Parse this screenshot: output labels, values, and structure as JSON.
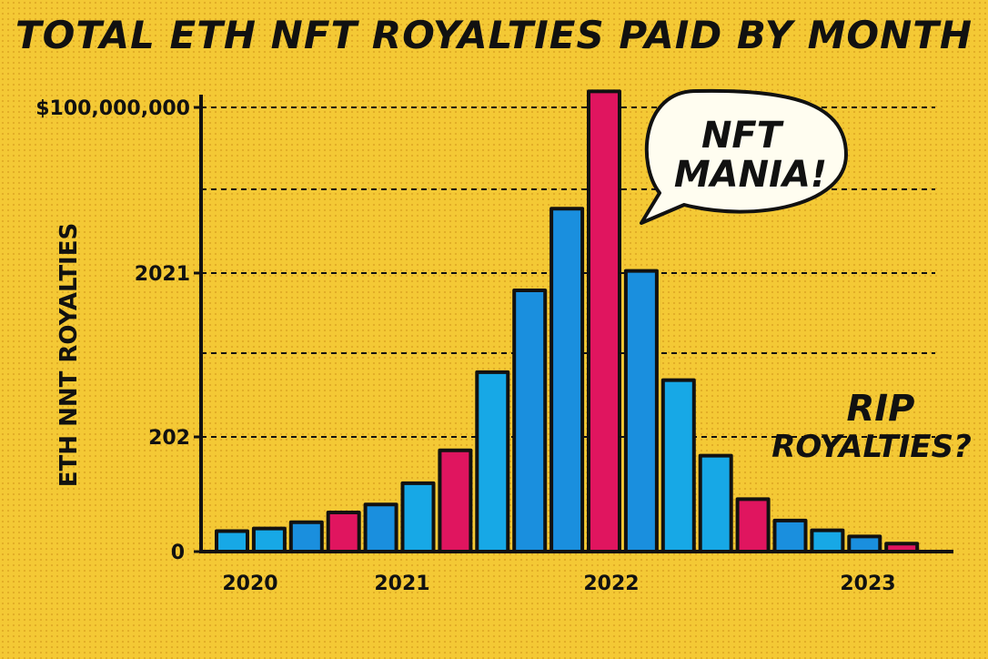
{
  "title": "TOTAL ETH NFT ROYALTIES PAID BY MONTH",
  "chart_data": {
    "type": "bar",
    "title": "TOTAL ETH NFT ROYALTIES PAID BY MONTH",
    "ylabel": "ETH NNT ROYALTIES",
    "xlabel": "",
    "ylim": [
      0,
      100000000
    ],
    "y_tick_labels": [
      "0",
      "202",
      "2021",
      "$100,000,000"
    ],
    "x_tick_labels": [
      "2020",
      "2021",
      "2022",
      "2023"
    ],
    "grid": "dashed horizontal",
    "values": [
      4600000,
      5200000,
      6600000,
      8800000,
      10600000,
      15400000,
      22800000,
      40400000,
      58800000,
      77200000,
      103600000,
      63200000,
      38600000,
      21600000,
      11800000,
      7000000,
      4800000,
      3400000,
      1800000
    ],
    "bar_colors": [
      "#17a8e6",
      "#17a8e6",
      "#1a8fde",
      "#e0155f",
      "#1a8fde",
      "#17a8e6",
      "#e0155f",
      "#17a8e6",
      "#1a8fde",
      "#1a8fde",
      "#e0155f",
      "#1a8fde",
      "#17a8e6",
      "#17a8e6",
      "#e0155f",
      "#1a8fde",
      "#17a8e6",
      "#1a8fde",
      "#e0155f"
    ],
    "annotations": {
      "peak": [
        "NFT",
        "MANIA!"
      ],
      "tail": [
        "RIP",
        "ROYALTIES?"
      ]
    }
  }
}
